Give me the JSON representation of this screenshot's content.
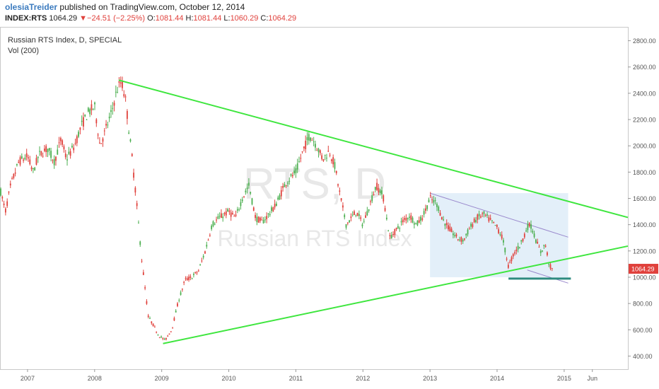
{
  "header": {
    "author": "olesiaTreider",
    "published_text": "published on TradingView.com, October 12, 2014",
    "symbol": "INDEX:RTS",
    "last": "1064.29",
    "change_arrow": "▼",
    "change": "−24.51",
    "change_pct": "(−2.25%)",
    "open_label": "O:",
    "open": "1081.44",
    "high_label": "H:",
    "high": "1081.44",
    "low_label": "L:",
    "low": "1060.29",
    "close_label": "C:",
    "close": "1064.29"
  },
  "legend": {
    "title": "Russian RTS Index, D, SPECIAL",
    "indicator": "Vol (200)"
  },
  "watermark": {
    "big": "RTS, D",
    "small": "Russian RTS Index"
  },
  "colors": {
    "up": "#4caf50",
    "down": "#e0413c",
    "trendline": "#3ee63e",
    "channel_line": "#9988cc",
    "channel_fill": "#dcebf7",
    "support": "#2e8b80",
    "price_tag": "#e0413c"
  },
  "chart_data": {
    "type": "candlestick",
    "title": "Russian RTS Index, D, SPECIAL",
    "xlim": [
      2006.6,
      2015.95
    ],
    "ylim": [
      300,
      2900
    ],
    "x_ticks": [
      {
        "x": 2007,
        "label": "2007"
      },
      {
        "x": 2008,
        "label": "2008"
      },
      {
        "x": 2009,
        "label": "2009"
      },
      {
        "x": 2010,
        "label": "2010"
      },
      {
        "x": 2011,
        "label": "2011"
      },
      {
        "x": 2012,
        "label": "2012"
      },
      {
        "x": 2013,
        "label": "2013"
      },
      {
        "x": 2014,
        "label": "2014"
      },
      {
        "x": 2015,
        "label": "2015"
      },
      {
        "x": 2015.42,
        "label": "Jun"
      }
    ],
    "y_ticks": [
      {
        "y": 400,
        "label": "400.00"
      },
      {
        "y": 600,
        "label": "600.00"
      },
      {
        "y": 800,
        "label": "800.00"
      },
      {
        "y": 1000,
        "label": "1000.00"
      },
      {
        "y": 1200,
        "label": "1200.00"
      },
      {
        "y": 1400,
        "label": "1400.00"
      },
      {
        "y": 1600,
        "label": "1600.00"
      },
      {
        "y": 1800,
        "label": "1800.00"
      },
      {
        "y": 2000,
        "label": "2000.00"
      },
      {
        "y": 2200,
        "label": "2200.00"
      },
      {
        "y": 2400,
        "label": "2400.00"
      },
      {
        "y": 2600,
        "label": "2600.00"
      },
      {
        "y": 2800,
        "label": "2800.00"
      }
    ],
    "last_price": {
      "value": 1064.29,
      "label": "1064.29"
    },
    "price_path": [
      [
        2006.6,
        1650
      ],
      [
        2006.67,
        1500
      ],
      [
        2006.75,
        1700
      ],
      [
        2006.87,
        1880
      ],
      [
        2007.0,
        1920
      ],
      [
        2007.08,
        1800
      ],
      [
        2007.17,
        1930
      ],
      [
        2007.3,
        1980
      ],
      [
        2007.4,
        1880
      ],
      [
        2007.5,
        2050
      ],
      [
        2007.58,
        1900
      ],
      [
        2007.7,
        2000
      ],
      [
        2007.8,
        2150
      ],
      [
        2007.9,
        2250
      ],
      [
        2008.0,
        2300
      ],
      [
        2008.08,
        2000
      ],
      [
        2008.15,
        2100
      ],
      [
        2008.25,
        2250
      ],
      [
        2008.33,
        2420
      ],
      [
        2008.4,
        2490
      ],
      [
        2008.46,
        2350
      ],
      [
        2008.55,
        1950
      ],
      [
        2008.62,
        1600
      ],
      [
        2008.7,
        1150
      ],
      [
        2008.8,
        700
      ],
      [
        2008.87,
        640
      ],
      [
        2008.95,
        560
      ],
      [
        2009.05,
        520
      ],
      [
        2009.15,
        600
      ],
      [
        2009.25,
        820
      ],
      [
        2009.35,
        980
      ],
      [
        2009.45,
        1000
      ],
      [
        2009.55,
        1050
      ],
      [
        2009.65,
        1200
      ],
      [
        2009.75,
        1400
      ],
      [
        2009.85,
        1450
      ],
      [
        2010.0,
        1500
      ],
      [
        2010.1,
        1450
      ],
      [
        2010.2,
        1600
      ],
      [
        2010.3,
        1700
      ],
      [
        2010.4,
        1450
      ],
      [
        2010.5,
        1420
      ],
      [
        2010.6,
        1480
      ],
      [
        2010.7,
        1550
      ],
      [
        2010.85,
        1720
      ],
      [
        2011.0,
        1800
      ],
      [
        2011.1,
        1950
      ],
      [
        2011.2,
        2080
      ],
      [
        2011.28,
        2030
      ],
      [
        2011.4,
        1900
      ],
      [
        2011.5,
        1960
      ],
      [
        2011.58,
        1850
      ],
      [
        2011.65,
        1650
      ],
      [
        2011.75,
        1400
      ],
      [
        2011.9,
        1500
      ],
      [
        2012.0,
        1400
      ],
      [
        2012.1,
        1550
      ],
      [
        2012.2,
        1700
      ],
      [
        2012.3,
        1620
      ],
      [
        2012.4,
        1300
      ],
      [
        2012.5,
        1360
      ],
      [
        2012.6,
        1430
      ],
      [
        2012.7,
        1470
      ],
      [
        2012.8,
        1400
      ],
      [
        2012.9,
        1470
      ],
      [
        2013.0,
        1600
      ],
      [
        2013.1,
        1560
      ],
      [
        2013.2,
        1430
      ],
      [
        2013.3,
        1360
      ],
      [
        2013.4,
        1300
      ],
      [
        2013.5,
        1280
      ],
      [
        2013.6,
        1380
      ],
      [
        2013.7,
        1450
      ],
      [
        2013.8,
        1480
      ],
      [
        2013.9,
        1430
      ],
      [
        2014.0,
        1380
      ],
      [
        2014.08,
        1300
      ],
      [
        2014.17,
        1080
      ],
      [
        2014.25,
        1180
      ],
      [
        2014.35,
        1250
      ],
      [
        2014.45,
        1380
      ],
      [
        2014.5,
        1400
      ],
      [
        2014.58,
        1280
      ],
      [
        2014.65,
        1190
      ],
      [
        2014.72,
        1250
      ],
      [
        2014.78,
        1090
      ],
      [
        2014.82,
        1064
      ]
    ],
    "annotations": {
      "upper_trendline": [
        [
          2008.36,
          2500
        ],
        [
          2015.95,
          1455
        ]
      ],
      "lower_trendline": [
        [
          2009.02,
          495
        ],
        [
          2015.95,
          1237
        ]
      ],
      "channel_upper": [
        [
          2013.0,
          1640
        ],
        [
          2015.06,
          1305
        ]
      ],
      "channel_lower": [
        [
          2014.45,
          1055
        ],
        [
          2015.06,
          955
        ]
      ],
      "channel_box": {
        "x0": 2013.0,
        "x1": 2015.06,
        "y0": 1000,
        "y1": 1640
      },
      "support_line": {
        "x0": 2014.17,
        "x1": 2015.1,
        "y": 990
      }
    }
  }
}
